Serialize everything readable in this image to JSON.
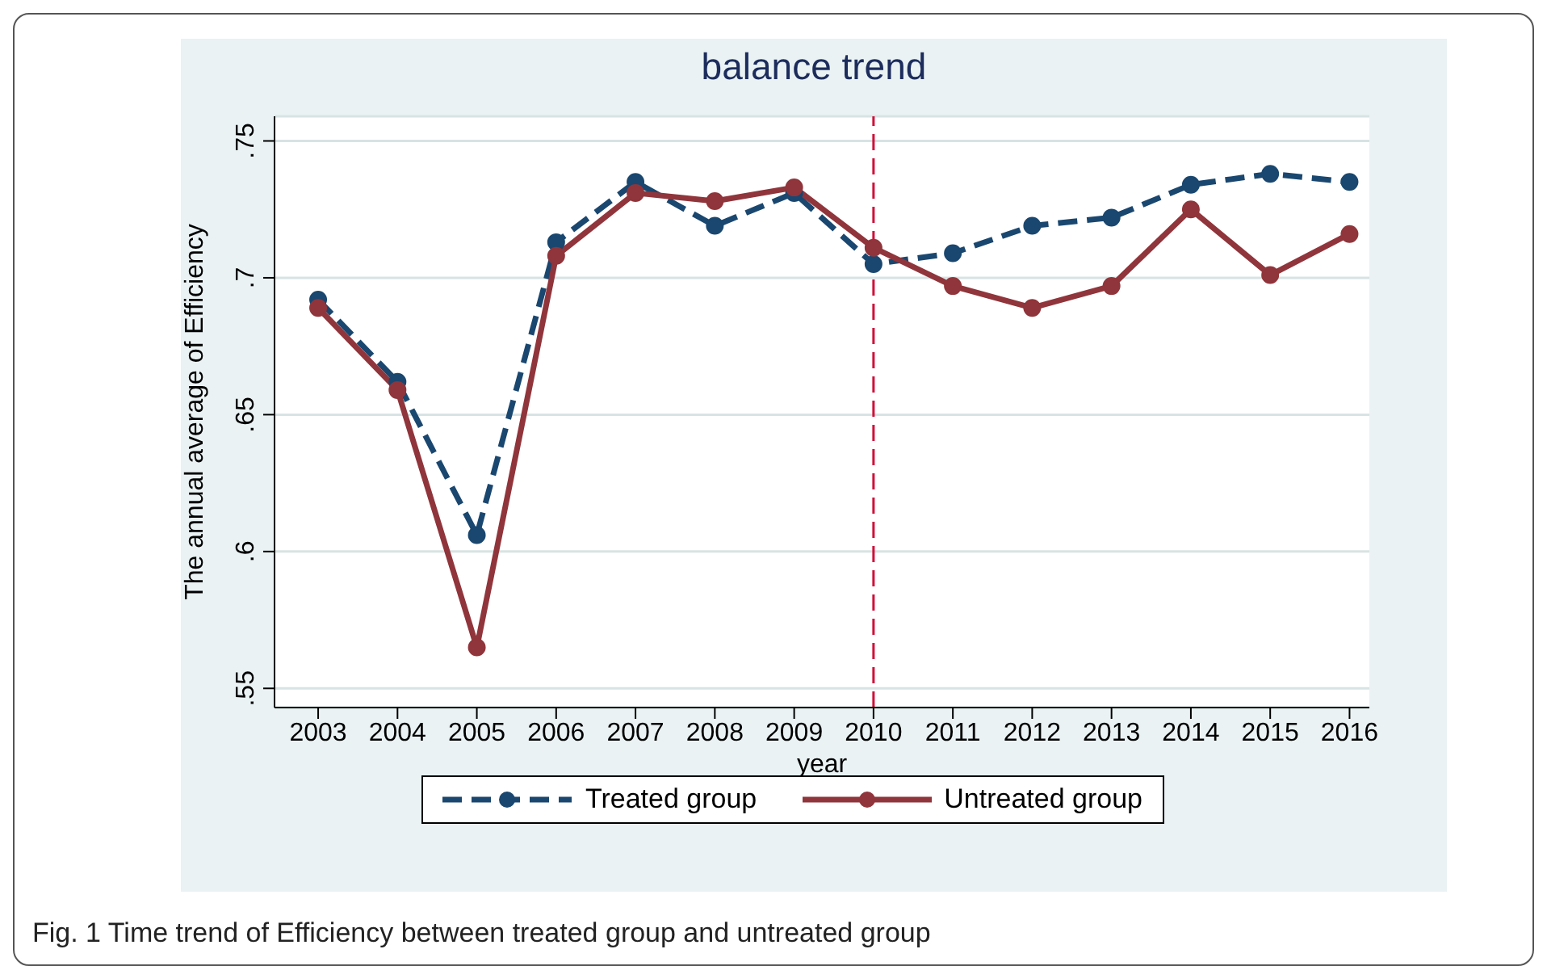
{
  "chart_data": {
    "type": "line",
    "title": "balance trend",
    "xlabel": "year",
    "ylabel": "The annual average of Efficiency",
    "x": [
      2003,
      2004,
      2005,
      2006,
      2007,
      2008,
      2009,
      2010,
      2011,
      2012,
      2013,
      2014,
      2015,
      2016
    ],
    "series": [
      {
        "name": "Treated group",
        "color": "#1a476f",
        "line_style": "dashed",
        "values": [
          0.692,
          0.662,
          0.606,
          0.713,
          0.735,
          0.719,
          0.731,
          0.705,
          0.709,
          0.719,
          0.722,
          0.734,
          0.738,
          0.735
        ]
      },
      {
        "name": "Untreated group",
        "color": "#90353b",
        "line_style": "solid",
        "values": [
          0.689,
          0.659,
          0.565,
          0.708,
          0.731,
          0.728,
          0.733,
          0.711,
          0.697,
          0.689,
          0.697,
          0.725,
          0.701,
          0.716
        ]
      }
    ],
    "marker": "circle",
    "xlim": [
      2002.45,
      2016.25
    ],
    "xticks": [
      2003,
      2004,
      2005,
      2006,
      2007,
      2008,
      2009,
      2010,
      2011,
      2012,
      2013,
      2014,
      2015,
      2016
    ],
    "ylim": [
      0.543,
      0.759
    ],
    "yticks": [
      {
        "value": 0.55,
        "label": ".55"
      },
      {
        "value": 0.6,
        "label": ".6"
      },
      {
        "value": 0.65,
        "label": ".65"
      },
      {
        "value": 0.7,
        "label": ".7"
      },
      {
        "value": 0.75,
        "label": ".75"
      }
    ],
    "ref_lines": [
      {
        "axis": "x",
        "value": 2010,
        "color": "#d0103a",
        "line_style": "dashed"
      }
    ],
    "grid": "y",
    "legend": "bottom",
    "annotations": [
      "Fig. 1 Time trend of Efficiency between treated group and untreated group"
    ]
  }
}
